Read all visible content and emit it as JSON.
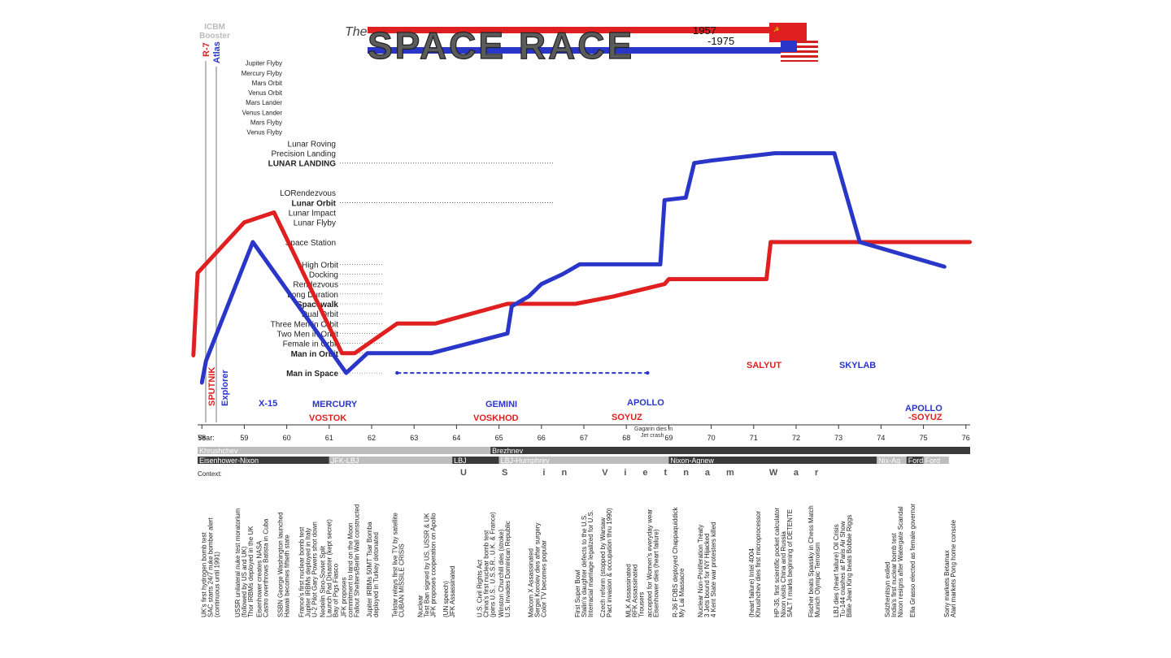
{
  "title": {
    "prefix": "The",
    "main": "SPACE RACE",
    "year_start": "1957",
    "year_end": "-1975"
  },
  "colors": {
    "ussr": "#e02020",
    "usa": "#2a36c8",
    "dark": "#333333",
    "gray": "#b9b9b9"
  },
  "booster": {
    "header_line1": "ICBM",
    "header_line2": "Booster",
    "ussr_label": "R-7",
    "usa_label": "Atlas"
  },
  "planetary_levels": [
    {
      "label": "Jupiter Flyby",
      "y": 24.5
    },
    {
      "label": "Mercury Flyby",
      "y": 23.7
    },
    {
      "label": "Mars Orbit",
      "y": 22.9
    },
    {
      "label": "Venus Orbit",
      "y": 22.1
    },
    {
      "label": "Mars Lander",
      "y": 21.3
    },
    {
      "label": "Venus Lander",
      "y": 20.5
    },
    {
      "label": "Mars Flyby",
      "y": 19.7
    },
    {
      "label": "Venus Flyby",
      "y": 18.9
    }
  ],
  "lunar_levels": [
    {
      "label": "Lunar Roving",
      "y": 18.0,
      "bold": false
    },
    {
      "label": "Precision Landing",
      "y": 17.2,
      "bold": false
    },
    {
      "label": "LUNAR LANDING",
      "y": 16.4,
      "bold": true
    },
    {
      "label": "LORendezvous",
      "y": 14.0,
      "bold": false
    },
    {
      "label": "Lunar Orbit",
      "y": 13.2,
      "bold": true
    },
    {
      "label": "Lunar Impact",
      "y": 12.4,
      "bold": false
    },
    {
      "label": "Lunar Flyby",
      "y": 11.6,
      "bold": false
    },
    {
      "label": "Space Station",
      "y": 10.0,
      "bold": false
    }
  ],
  "orbit_levels": [
    {
      "label": "High Orbit",
      "y": 8.2,
      "bold": false
    },
    {
      "label": "Docking",
      "y": 7.4,
      "bold": false
    },
    {
      "label": "Rendezvous",
      "y": 6.6,
      "bold": false
    },
    {
      "label": "Long Duration",
      "y": 5.8,
      "bold": false
    },
    {
      "label": "Spacewalk",
      "y": 5.0,
      "bold": true
    },
    {
      "label": "Dual Orbit",
      "y": 4.2,
      "bold": false
    },
    {
      "label": "Three Men in Orbit",
      "y": 3.4,
      "bold": false
    },
    {
      "label": "Two Men in Orbit",
      "y": 2.6,
      "bold": false
    },
    {
      "label": "Female in Orbit",
      "y": 1.8,
      "bold": false
    },
    {
      "label": "Man in Orbit",
      "y": 1.0,
      "bold": true
    },
    {
      "label": "Man in Space",
      "y": -0.6,
      "bold": true
    }
  ],
  "chart_data": {
    "type": "line",
    "xlabel": "Year:",
    "x_ticks": [
      "58",
      "59",
      "60",
      "61",
      "62",
      "63",
      "64",
      "65",
      "66",
      "67",
      "68",
      "69",
      "70",
      "71",
      "72",
      "73",
      "74",
      "75",
      "76"
    ],
    "xlim": [
      1957.9,
      1976.1
    ],
    "series": [
      {
        "name": "USSR",
        "color": "#e02020",
        "points": [
          [
            1957.8,
            0.8
          ],
          [
            1957.9,
            7.5
          ],
          [
            1959.0,
            11.6
          ],
          [
            1959.7,
            12.4
          ],
          [
            1961.3,
            1.0
          ],
          [
            1961.6,
            1.0
          ],
          [
            1962.6,
            3.4
          ],
          [
            1963.5,
            3.4
          ],
          [
            1965.2,
            5.0
          ],
          [
            1966.8,
            5.0
          ],
          [
            1967.7,
            5.6
          ],
          [
            1968.9,
            6.6
          ],
          [
            1969.0,
            7.0
          ],
          [
            1971.3,
            7.0
          ],
          [
            1971.4,
            10.0
          ],
          [
            1976.1,
            10.0
          ]
        ]
      },
      {
        "name": "USA",
        "color": "#2a36c8",
        "points": [
          [
            1958.0,
            -1.4
          ],
          [
            1958.1,
            0.4
          ],
          [
            1959.2,
            10.0
          ],
          [
            1961.4,
            -0.6
          ],
          [
            1961.9,
            1.0
          ],
          [
            1962.4,
            1.0
          ],
          [
            1963.4,
            1.0
          ],
          [
            1965.2,
            2.6
          ],
          [
            1965.3,
            4.8
          ],
          [
            1965.7,
            5.6
          ],
          [
            1966.0,
            6.6
          ],
          [
            1966.5,
            7.4
          ],
          [
            1966.9,
            8.2
          ],
          [
            1968.8,
            8.2
          ],
          [
            1968.9,
            13.4
          ],
          [
            1969.4,
            13.6
          ],
          [
            1969.6,
            16.4
          ],
          [
            1970.0,
            16.6
          ],
          [
            1971.5,
            17.2
          ],
          [
            1972.9,
            17.2
          ],
          [
            1973.5,
            10.0
          ],
          [
            1975.5,
            8.0
          ]
        ]
      },
      {
        "name": "USA Man in Space",
        "color": "#2a36c8",
        "points": [
          [
            1962.6,
            -0.6
          ],
          [
            1968.5,
            -0.6
          ]
        ]
      }
    ]
  },
  "programs": {
    "ussr": [
      "VOSTOK",
      "VOSKHOD",
      "SOYUZ",
      "SALYUT",
      "SKYLAB"
    ],
    "usa": [
      "X-15",
      "MERCURY",
      "GEMINI",
      "APOLLO",
      "APOLLO",
      "-SOYUZ"
    ],
    "sputnik": "SPUTNIK",
    "explorer": "Explorer"
  },
  "notes": {
    "gagarin": "Gagarin dies in",
    "gagarin2": "Jet crash"
  },
  "leaders": {
    "row1": [
      {
        "label": "Khrushchev",
        "from": 1957.0,
        "to": 1964.8
      },
      {
        "label": "Brezhnev",
        "from": 1964.8,
        "to": 1976.1
      }
    ],
    "row2": [
      {
        "label": "Eisenhower-Nixon",
        "from": 1957.0,
        "to": 1961.0
      },
      {
        "label": "JFK-LBJ",
        "from": 1961.0,
        "to": 1963.9
      },
      {
        "label": "LBJ",
        "from": 1963.9,
        "to": 1965.0
      },
      {
        "label": "LBJ-Humphrey",
        "from": 1965.0,
        "to": 1969.0
      },
      {
        "label": "Nixon-Agnew",
        "from": 1969.0,
        "to": 1973.9
      },
      {
        "label": "Nix-Ag",
        "from": 1973.9,
        "to": 1974.6
      },
      {
        "label": "Ford",
        "from": 1974.6,
        "to": 1975.0
      },
      {
        "label": "Ford",
        "from": 1975.0,
        "to": 1975.6
      }
    ]
  },
  "context_label": "Context:",
  "vietnam": "U S in Vietnam War",
  "context_events": [
    {
      "x": 1958.1,
      "lines": [
        "UK's first hydrogen bomb test",
        "SAC starts 24/7 nuke bomber alert",
        "(continuous until 1991)"
      ]
    },
    {
      "x": 1958.9,
      "lines": [
        "USSR unilateral nuke test moratorium",
        "(followed by US and UK)",
        "Thor IRBMs deployed in the UK"
      ]
    },
    {
      "x": 1959.4,
      "lines": [
        "Eisenhower creates NASA",
        "Castro overthrows Batista in Cuba"
      ]
    },
    {
      "x": 1959.9,
      "lines": [
        "SSBN George Washington launched",
        "Hawaii becomes fiftieth state"
      ]
    },
    {
      "x": 1960.4,
      "lines": [
        "France's first nuclear bomb test",
        "Jupiter IRBMs deployed in Italy",
        "U-2 Pilot Gary Powers shot down"
      ]
    },
    {
      "x": 1960.9,
      "lines": [
        "Nedelin Sino-Soviet Split",
        "Launch Pad Disaster (kept secret)",
        "Bay of Pigs Fiasco"
      ]
    },
    {
      "x": 1961.4,
      "lines": [
        "JFK proposes",
        "commitment to land on the Moon",
        "Fallout Shelters/Berlin Wall constructed"
      ]
    },
    {
      "x": 1962.0,
      "lines": [
        "Jupiter IRBMs 50MT Tsar Bomba",
        "deployed in Turkey detonated"
      ]
    },
    {
      "x": 1962.6,
      "lines": [
        "Telstar relays first live TV by satellite",
        "CUBAN MISSILE CRISIS"
      ]
    },
    {
      "x": 1963.2,
      "lines": [
        "Nuclear",
        "Test Ban signed by US, USSR & UK",
        "JFK proposes cooperation on Apollo"
      ]
    },
    {
      "x": 1963.8,
      "lines": [
        "(UN speech)",
        "JFK Assassinated"
      ]
    },
    {
      "x": 1964.6,
      "lines": [
        "U.S. Civil Rights Act",
        "China's first nuclear bomb test",
        "(joins U.S., U.S.S.R., U.K. & France)"
      ]
    },
    {
      "x": 1965.1,
      "lines": [
        "Winston Churchill dies (stroke)",
        "U.S. invades Dominican Republic"
      ]
    },
    {
      "x": 1965.8,
      "lines": [
        "Malcom X Assassinated",
        "Sergei Korolev dies after surgery",
        "Color TV becomes popular"
      ]
    },
    {
      "x": 1966.9,
      "lines": [
        "First Super Bowl",
        "Stalin's daughter defects to the U.S.",
        "Interracial marriage legalized for U.S."
      ]
    },
    {
      "x": 1967.5,
      "lines": [
        "Czech reform (stopped by Warsaw",
        "Pact invasion & occupation thru 1990)"
      ]
    },
    {
      "x": 1968.1,
      "lines": [
        "MLK Assassinated",
        "RFK Assassinated",
        "Trousers"
      ]
    },
    {
      "x": 1968.6,
      "lines": [
        "accepted for Women's everyday wear",
        "Eisenhower dies (heart failure)"
      ]
    },
    {
      "x": 1969.2,
      "lines": [
        "R-36 FOBS deployed Chappaquiddick",
        "My Lai Massacre"
      ]
    },
    {
      "x": 1969.8,
      "lines": [
        "Nuclear Non-Proliferation Treaty",
        "3 Jets bound for NY Hijacked",
        "4 Kent State war protesters killed"
      ]
    },
    {
      "x": 1971.0,
      "lines": [
        "(heart failure) Intel 4004",
        "Khrushchev dies first microprocessor"
      ]
    },
    {
      "x": 1971.6,
      "lines": [
        "HP-35, first scientific pocket calculator",
        "Nixon visits China and Russia",
        "SALT I marks beginning of DETENTE"
      ]
    },
    {
      "x": 1972.4,
      "lines": [
        "Fischer beats Spassky in Chess Match",
        "Munich Olympic Terrorism"
      ]
    },
    {
      "x": 1973.0,
      "lines": [
        "LBJ dies (heart failure) Oil Crisis",
        "Tu-144 crashes at Paris Air Show",
        "Billie Jean King beats Bobbie Riggs"
      ]
    },
    {
      "x": 1974.2,
      "lines": [
        "Solzhenitsyn exiled",
        "India's first nuclear bomb test",
        "Nixon resigns after Watergate Scandal"
      ]
    },
    {
      "x": 1974.8,
      "lines": [
        "Ella Grasso elected as female governor"
      ]
    },
    {
      "x": 1975.6,
      "lines": [
        "Sony markets Betamax",
        "Atari markets Pong home console"
      ]
    }
  ]
}
